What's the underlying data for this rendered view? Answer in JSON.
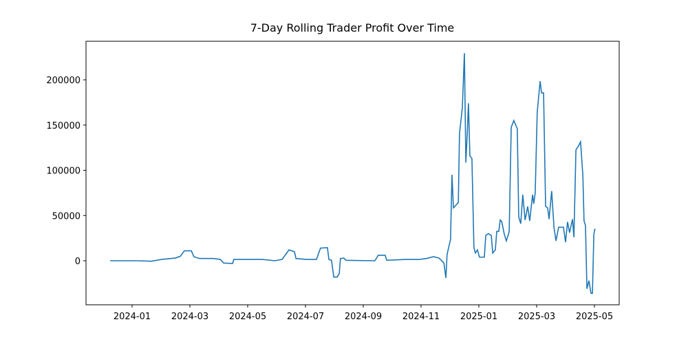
{
  "chart_data": {
    "type": "line",
    "title": "7-Day Rolling Trader Profit Over Time",
    "x": [
      -0.76,
      0.19,
      0.67,
      1.02,
      1.5,
      1.67,
      1.81,
      2.05,
      2.14,
      2.33,
      2.81,
      3.05,
      3.17,
      3.48,
      3.52,
      4.48,
      4.95,
      5.19,
      5.43,
      5.62,
      5.67,
      6.02,
      6.38,
      6.52,
      6.76,
      6.81,
      6.9,
      6.98,
      7.1,
      7.17,
      7.21,
      7.33,
      7.4,
      8.4,
      8.52,
      8.76,
      8.81,
      9.48,
      9.95,
      10.19,
      10.43,
      10.62,
      10.79,
      10.86,
      10.9,
      10.98,
      11.02,
      11.07,
      11.12,
      11.21,
      11.29,
      11.33,
      11.43,
      11.5,
      11.55,
      11.6,
      11.64,
      11.69,
      11.76,
      11.83,
      11.88,
      11.95,
      12.02,
      12.19,
      12.24,
      12.33,
      12.43,
      12.48,
      12.57,
      12.62,
      12.69,
      12.74,
      12.79,
      12.88,
      12.95,
      13.05,
      13.12,
      13.21,
      13.33,
      13.38,
      13.45,
      13.52,
      13.6,
      13.69,
      13.76,
      13.86,
      13.9,
      13.95,
      14.02,
      14.12,
      14.17,
      14.24,
      14.31,
      14.38,
      14.43,
      14.52,
      14.6,
      14.67,
      14.76,
      14.83,
      14.93,
      15.0,
      15.07,
      15.14,
      15.24,
      15.29,
      15.36,
      15.45,
      15.52,
      15.6,
      15.64,
      15.69,
      15.74,
      15.81,
      15.88,
      15.93,
      15.98,
      16.02
    ],
    "values": [
      0,
      0,
      -500,
      1500,
      3000,
      5000,
      11000,
      11000,
      4500,
      2500,
      2500,
      1500,
      -2500,
      -3000,
      1500,
      1500,
      0,
      1500,
      12000,
      10000,
      2500,
      1500,
      1500,
      14000,
      14500,
      1500,
      500,
      -18000,
      -18000,
      -14000,
      2500,
      3000,
      500,
      0,
      6000,
      6000,
      500,
      1500,
      1500,
      2500,
      4500,
      3000,
      -2500,
      -19000,
      7000,
      18000,
      23500,
      95000,
      58500,
      61500,
      64500,
      140000,
      170000,
      229500,
      108500,
      141500,
      174000,
      116000,
      113000,
      14500,
      8500,
      12000,
      4000,
      4000,
      28000,
      30000,
      28000,
      8500,
      12000,
      32500,
      32500,
      45000,
      43500,
      29500,
      22000,
      32000,
      147500,
      155000,
      146000,
      48500,
      41000,
      73000,
      45000,
      60000,
      44000,
      73000,
      63000,
      75000,
      164000,
      198500,
      185500,
      185500,
      60000,
      58500,
      46000,
      77000,
      37000,
      22000,
      37000,
      37000,
      37000,
      20500,
      43000,
      31000,
      46000,
      26000,
      122500,
      127000,
      131500,
      94000,
      44000,
      39000,
      -31000,
      -22000,
      -36000,
      -36000,
      29500,
      35500
    ],
    "color": "#1f77b4",
    "xlim": [
      -1.595,
      16.857
    ],
    "xticks": [
      {
        "value": 0,
        "label": "2024-01"
      },
      {
        "value": 2,
        "label": "2024-03"
      },
      {
        "value": 4,
        "label": "2024-05"
      },
      {
        "value": 6,
        "label": "2024-07"
      },
      {
        "value": 8,
        "label": "2024-09"
      },
      {
        "value": 10,
        "label": "2024-11"
      },
      {
        "value": 12,
        "label": "2025-01"
      },
      {
        "value": 14,
        "label": "2025-03"
      },
      {
        "value": 16,
        "label": "2025-05"
      }
    ],
    "ylim": [
      -48670,
      242600
    ],
    "yticks": [
      0,
      50000,
      100000,
      150000,
      200000
    ]
  }
}
